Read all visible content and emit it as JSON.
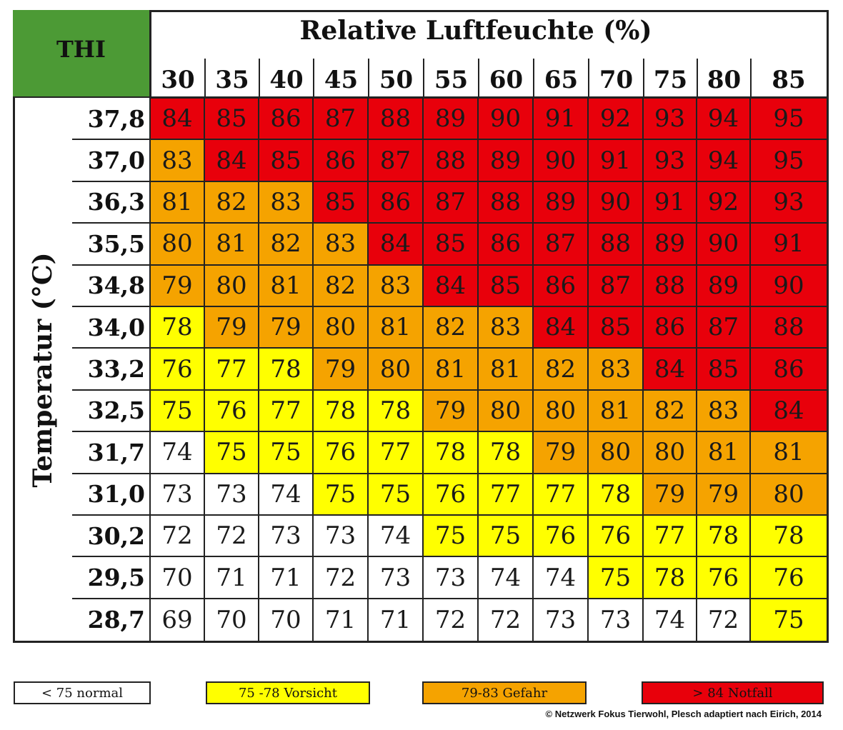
{
  "chart_data": {
    "type": "heatmap",
    "corner_label": "THI",
    "title": "Relative Luftfeuchte (%)",
    "ylabel": "Temperatur (°C)",
    "x": [
      "30",
      "35",
      "40",
      "45",
      "50",
      "55",
      "60",
      "65",
      "70",
      "75",
      "80",
      "85"
    ],
    "y": [
      "37,8",
      "37,0",
      "36,3",
      "35,5",
      "34,8",
      "34,0",
      "33,2",
      "32,5",
      "31,7",
      "31,0",
      "30,2",
      "29,5",
      "28,7"
    ],
    "values": [
      [
        84,
        85,
        86,
        87,
        88,
        89,
        90,
        91,
        92,
        93,
        94,
        95
      ],
      [
        83,
        84,
        85,
        86,
        87,
        88,
        89,
        90,
        91,
        93,
        94,
        95
      ],
      [
        81,
        82,
        83,
        85,
        86,
        87,
        88,
        89,
        90,
        91,
        92,
        93
      ],
      [
        80,
        81,
        82,
        83,
        84,
        85,
        86,
        87,
        88,
        89,
        90,
        91
      ],
      [
        79,
        80,
        81,
        82,
        83,
        84,
        85,
        86,
        87,
        88,
        89,
        90
      ],
      [
        78,
        79,
        79,
        80,
        81,
        82,
        83,
        84,
        85,
        86,
        87,
        88
      ],
      [
        76,
        77,
        78,
        79,
        80,
        81,
        81,
        82,
        83,
        84,
        85,
        86
      ],
      [
        75,
        76,
        77,
        78,
        78,
        79,
        80,
        80,
        81,
        82,
        83,
        84
      ],
      [
        74,
        75,
        75,
        76,
        77,
        78,
        78,
        79,
        80,
        80,
        81,
        81
      ],
      [
        73,
        73,
        74,
        75,
        75,
        76,
        77,
        77,
        78,
        79,
        79,
        80
      ],
      [
        72,
        72,
        73,
        73,
        74,
        75,
        75,
        76,
        76,
        77,
        78,
        78
      ],
      [
        70,
        71,
        71,
        72,
        73,
        73,
        74,
        74,
        75,
        78,
        76,
        76
      ],
      [
        69,
        70,
        70,
        71,
        71,
        72,
        72,
        73,
        73,
        74,
        72,
        75
      ]
    ],
    "categories": [
      [
        3,
        3,
        3,
        3,
        3,
        3,
        3,
        3,
        3,
        3,
        3,
        3
      ],
      [
        2,
        3,
        3,
        3,
        3,
        3,
        3,
        3,
        3,
        3,
        3,
        3
      ],
      [
        2,
        2,
        2,
        3,
        3,
        3,
        3,
        3,
        3,
        3,
        3,
        3
      ],
      [
        2,
        2,
        2,
        2,
        3,
        3,
        3,
        3,
        3,
        3,
        3,
        3
      ],
      [
        2,
        2,
        2,
        2,
        2,
        3,
        3,
        3,
        3,
        3,
        3,
        3
      ],
      [
        1,
        2,
        2,
        2,
        2,
        2,
        2,
        3,
        3,
        3,
        3,
        3
      ],
      [
        1,
        1,
        1,
        2,
        2,
        2,
        2,
        2,
        2,
        3,
        3,
        3
      ],
      [
        1,
        1,
        1,
        1,
        1,
        2,
        2,
        2,
        2,
        2,
        2,
        3
      ],
      [
        0,
        1,
        1,
        1,
        1,
        1,
        1,
        2,
        2,
        2,
        2,
        2
      ],
      [
        0,
        0,
        0,
        1,
        1,
        1,
        1,
        1,
        1,
        2,
        2,
        2
      ],
      [
        0,
        0,
        0,
        0,
        0,
        1,
        1,
        1,
        1,
        1,
        1,
        1
      ],
      [
        0,
        0,
        0,
        0,
        0,
        0,
        0,
        0,
        1,
        1,
        1,
        1
      ],
      [
        0,
        0,
        0,
        0,
        0,
        0,
        0,
        0,
        0,
        0,
        0,
        1
      ]
    ],
    "legend": [
      {
        "label": "< 75 normal",
        "color": "#ffffff"
      },
      {
        "label": "75 -78 Vorsicht",
        "color": "#ffff00"
      },
      {
        "label": "79-83 Gefahr",
        "color": "#f5a300"
      },
      {
        "label": "> 84 Notfall",
        "color": "#e8000b"
      }
    ],
    "header_color": "#4c9a35",
    "credit": "© Netzwerk Fokus Tierwohl, Plesch adaptiert nach Eirich, 2014"
  }
}
